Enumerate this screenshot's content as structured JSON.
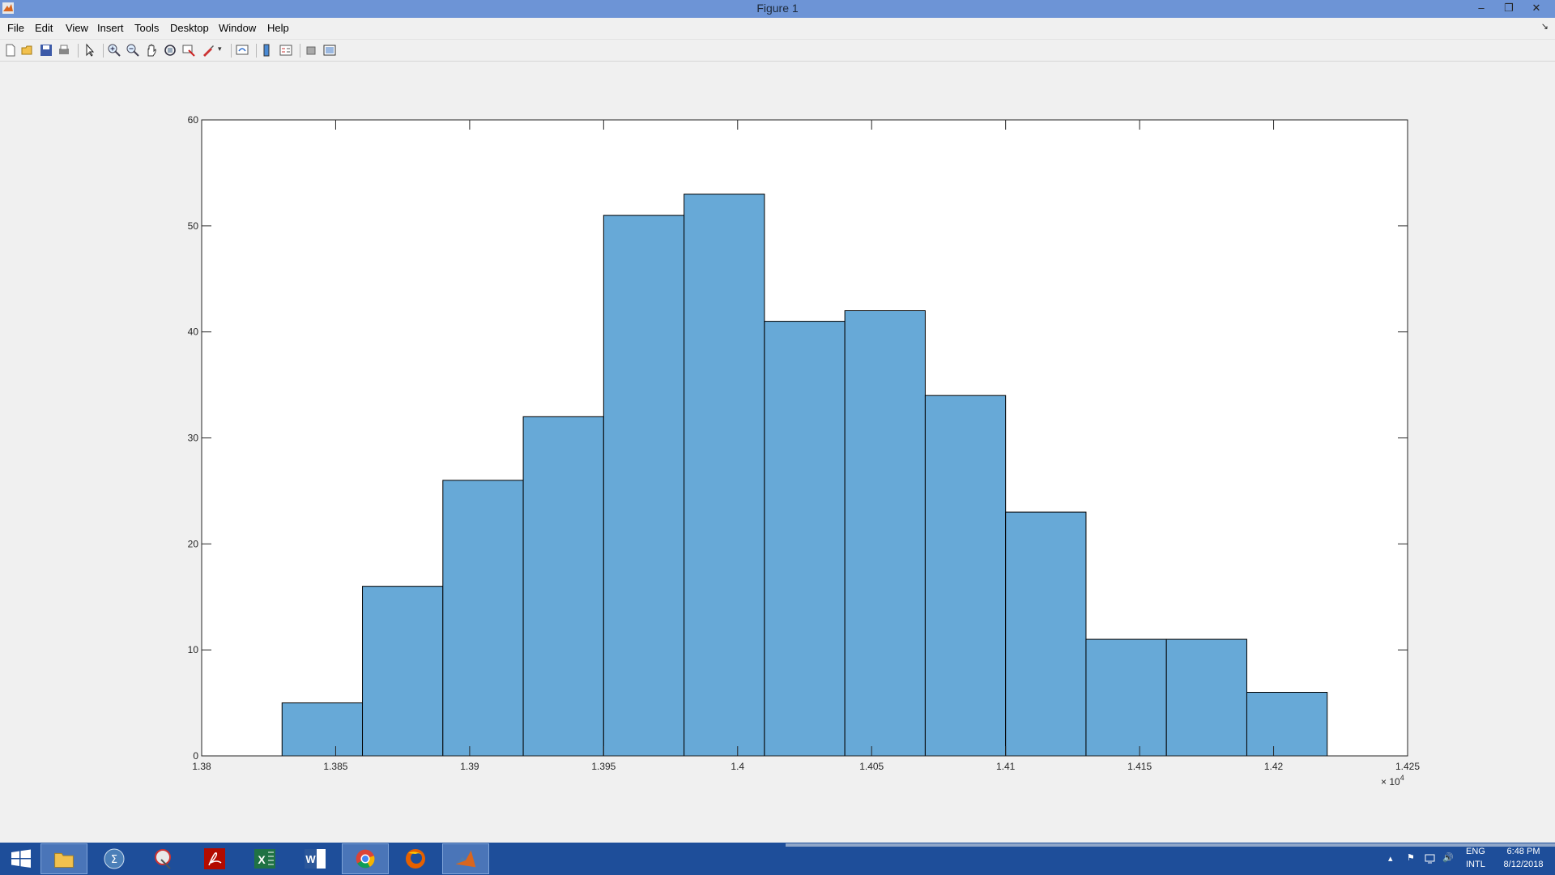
{
  "window": {
    "title": "Figure 1"
  },
  "menu": [
    "File",
    "Edit",
    "View",
    "Insert",
    "Tools",
    "Desktop",
    "Window",
    "Help"
  ],
  "toolbar_icons": [
    "new-figure-icon",
    "open-file-icon",
    "save-icon",
    "print-icon",
    "select-arrow-icon",
    "zoom-in-icon",
    "zoom-out-icon",
    "pan-icon",
    "rotate-icon",
    "data-cursor-icon",
    "brush-icon",
    "link-plot-icon",
    "colorbar-icon",
    "legend-icon",
    "hide-plot-tools-icon",
    "show-plot-tools-icon"
  ],
  "chart_data": {
    "type": "bar",
    "categories": [
      "13830-13860",
      "13860-13890",
      "13890-13920",
      "13920-13950",
      "13950-13980",
      "13980-14010",
      "14010-14040",
      "14040-14070",
      "14070-14100",
      "14100-14130",
      "14130-14160",
      "14160-14190",
      "14190-14220"
    ],
    "bin_edges": [
      13830,
      13860,
      13890,
      13920,
      13950,
      13980,
      14010,
      14040,
      14070,
      14100,
      14130,
      14160,
      14190,
      14220
    ],
    "values": [
      5,
      16,
      26,
      32,
      51,
      53,
      41,
      42,
      34,
      23,
      11,
      11,
      6
    ],
    "xlim": [
      13800,
      14250
    ],
    "ylim": [
      0,
      60
    ],
    "xticks": [
      "1.38",
      "1.385",
      "1.39",
      "1.395",
      "1.4",
      "1.405",
      "1.41",
      "1.415",
      "1.42",
      "1.425"
    ],
    "xtick_values": [
      13800,
      13850,
      13900,
      13950,
      14000,
      14050,
      14100,
      14150,
      14200,
      14250
    ],
    "yticks": [
      "0",
      "10",
      "20",
      "30",
      "40",
      "50",
      "60"
    ],
    "ytick_values": [
      0,
      10,
      20,
      30,
      40,
      50,
      60
    ],
    "x_exponent_label": {
      "base": "× 10",
      "exponent": "4"
    },
    "bar_color": "#67a9d7",
    "title": "",
    "xlabel": "",
    "ylabel": "",
    "grid": false
  },
  "taskbar": {
    "apps": [
      "windows-start-icon",
      "file-explorer-icon",
      "maple-icon",
      "snipping-tool-icon",
      "acrobat-icon",
      "excel-icon",
      "word-icon",
      "chrome-icon",
      "firefox-icon",
      "matlab-icon"
    ],
    "active_app": "matlab-icon",
    "lang_top": "ENG",
    "lang_bottom": "INTL",
    "time": "6:48 PM",
    "date": "8/12/2018"
  }
}
